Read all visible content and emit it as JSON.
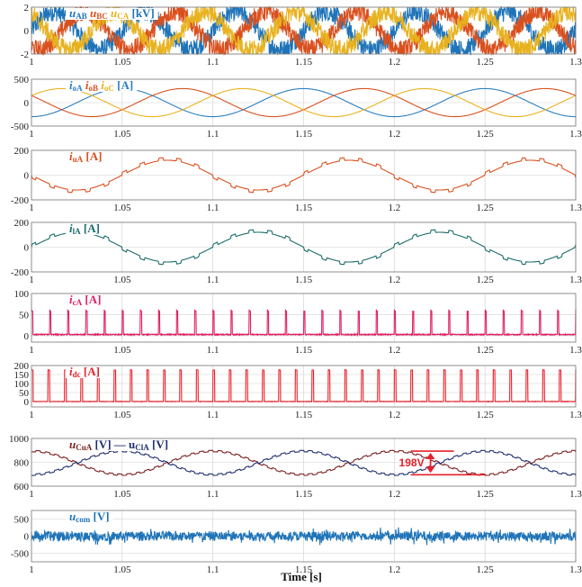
{
  "chart_data": [
    {
      "id": "p1",
      "type": "line",
      "xlim": [
        1,
        1.3
      ],
      "ylim": [
        -2,
        2
      ],
      "yticks": [
        -2,
        0,
        2
      ],
      "xticks": [
        1,
        1.05,
        1.1,
        1.15,
        1.2,
        1.25,
        1.3
      ],
      "label": [
        {
          "t": "u",
          "it": true,
          "c": "#1f74b8"
        },
        {
          "t": "AB",
          "sub": true,
          "c": "#1f74b8"
        },
        {
          "t": " u",
          "it": true,
          "c": "#d9501e"
        },
        {
          "t": "BC",
          "sub": true,
          "c": "#d9501e"
        },
        {
          "t": " u",
          "it": true,
          "c": "#e8b21f"
        },
        {
          "t": "CA",
          "sub": true,
          "c": "#e8b21f"
        },
        {
          "t": " [kV]",
          "c": "#1f74b8"
        }
      ],
      "series": [
        {
          "name": "uAB",
          "color": "#1f74b8",
          "amplitude": 1.6,
          "phase_deg": 0,
          "frequency_hz": 20,
          "style": "pwm"
        },
        {
          "name": "uBC",
          "color": "#d9501e",
          "amplitude": 1.6,
          "phase_deg": -120,
          "frequency_hz": 20,
          "style": "pwm"
        },
        {
          "name": "uCA",
          "color": "#e8b21f",
          "amplitude": 1.6,
          "phase_deg": 120,
          "frequency_hz": 20,
          "style": "pwm"
        }
      ]
    },
    {
      "id": "p2",
      "type": "line",
      "xlim": [
        1,
        1.3
      ],
      "ylim": [
        -500,
        500
      ],
      "yticks": [
        -500,
        0,
        500
      ],
      "xticks": [
        1,
        1.05,
        1.1,
        1.15,
        1.2,
        1.25,
        1.3
      ],
      "label": [
        {
          "t": "i",
          "it": true,
          "c": "#2b7fc0"
        },
        {
          "t": "oA",
          "sub": true,
          "c": "#2b7fc0"
        },
        {
          "t": " i",
          "it": true,
          "c": "#d9501e"
        },
        {
          "t": "oB",
          "sub": true,
          "c": "#d9501e"
        },
        {
          "t": " i",
          "it": true,
          "c": "#e8b21f"
        },
        {
          "t": "oC",
          "sub": true,
          "c": "#e8b21f"
        },
        {
          "t": " [A]",
          "c": "#2b7fc0"
        }
      ],
      "series": [
        {
          "name": "ioA",
          "color": "#2b7fc0",
          "amplitude": 300,
          "phase_deg": -90,
          "frequency_hz": 10,
          "style": "sine"
        },
        {
          "name": "ioB",
          "color": "#d9501e",
          "amplitude": 300,
          "phase_deg": 150,
          "frequency_hz": 10,
          "style": "sine"
        },
        {
          "name": "ioC",
          "color": "#e8b21f",
          "amplitude": 300,
          "phase_deg": 30,
          "frequency_hz": 10,
          "style": "sine"
        }
      ]
    },
    {
      "id": "p3",
      "type": "line",
      "xlim": [
        1,
        1.3
      ],
      "ylim": [
        -200,
        200
      ],
      "yticks": [
        -200,
        0,
        200
      ],
      "xticks": [
        1,
        1.05,
        1.1,
        1.15,
        1.2,
        1.25,
        1.3
      ],
      "label": [
        {
          "t": "i",
          "it": true,
          "c": "#d9501e"
        },
        {
          "t": "uA",
          "sub": true,
          "c": "#d9501e"
        },
        {
          "t": " [A]",
          "c": "#d9501e"
        }
      ],
      "series": [
        {
          "name": "iuA",
          "color": "#d9501e",
          "amplitude": 120,
          "offset": 0,
          "phase_deg": 180,
          "frequency_hz": 10,
          "style": "step-sine"
        }
      ]
    },
    {
      "id": "p4",
      "type": "line",
      "xlim": [
        1,
        1.3
      ],
      "ylim": [
        -200,
        200
      ],
      "yticks": [
        -200,
        0,
        200
      ],
      "xticks": [
        1,
        1.05,
        1.1,
        1.15,
        1.2,
        1.25,
        1.3
      ],
      "label": [
        {
          "t": "i",
          "it": true,
          "c": "#1a6b6b"
        },
        {
          "t": "lA",
          "sub": true,
          "c": "#1a6b6b"
        },
        {
          "t": " [A]",
          "c": "#1a6b6b"
        }
      ],
      "series": [
        {
          "name": "ilA",
          "color": "#1a6b6b",
          "amplitude": 120,
          "offset": 0,
          "phase_deg": 0,
          "frequency_hz": 10,
          "style": "step-sine"
        }
      ]
    },
    {
      "id": "p5",
      "type": "line",
      "xlim": [
        1,
        1.3
      ],
      "ylim": [
        -15,
        100
      ],
      "yticks": [
        0,
        50,
        100
      ],
      "xticks": [
        1,
        1.05,
        1.1,
        1.15,
        1.2,
        1.25,
        1.3
      ],
      "label": [
        {
          "t": "i",
          "it": true,
          "c": "#e0205f"
        },
        {
          "t": "cA",
          "sub": true,
          "c": "#e0205f"
        },
        {
          "t": " [A]",
          "c": "#e0205f"
        }
      ],
      "series": [
        {
          "name": "icA",
          "color": "#e0205f",
          "high": 58,
          "low": 3,
          "pulse_period_s": 0.01,
          "duty": 0.28,
          "style": "pulses"
        }
      ]
    },
    {
      "id": "p6",
      "type": "line",
      "xlim": [
        1,
        1.3
      ],
      "ylim": [
        -30,
        200
      ],
      "yticks": [
        0,
        50,
        100,
        150,
        200
      ],
      "xticks": [
        1,
        1.05,
        1.1,
        1.15,
        1.2,
        1.25,
        1.3
      ],
      "label": [
        {
          "t": "i",
          "it": true,
          "c": "#e8202a"
        },
        {
          "t": "dc",
          "sub": true,
          "c": "#e8202a"
        },
        {
          "t": " [A]",
          "c": "#e8202a"
        }
      ],
      "series": [
        {
          "name": "idc",
          "color": "#e8202a",
          "high": 175,
          "low": 0,
          "pulse_period_s": 0.00909,
          "duty": 0.42,
          "style": "pulses"
        }
      ]
    },
    {
      "id": "p7",
      "type": "line",
      "xlim": [
        1,
        1.3
      ],
      "ylim": [
        600,
        1000
      ],
      "yticks": [
        600,
        800,
        1000
      ],
      "xticks": [
        1,
        1.05,
        1.1,
        1.15,
        1.2,
        1.25,
        1.3
      ],
      "label": [
        {
          "t": "u",
          "it": true,
          "c": "#7a1f1f"
        },
        {
          "t": "CuA",
          "sub": true,
          "c": "#7a1f1f"
        },
        {
          "t": " [V]  — u",
          "c": "#1f2f6e"
        },
        {
          "t": "ClA",
          "sub": true,
          "c": "#1f2f6e"
        },
        {
          "t": " [V]",
          "c": "#1f2f6e"
        }
      ],
      "series": [
        {
          "name": "uCuA",
          "color": "#7a1f1f",
          "center": 795,
          "amplitude": 99,
          "phase_deg": 90,
          "frequency_hz": 10,
          "style": "cap-voltage"
        },
        {
          "name": "uClA",
          "color": "#1f2f6e",
          "center": 795,
          "amplitude": 99,
          "phase_deg": -90,
          "frequency_hz": 10,
          "style": "cap-voltage"
        }
      ],
      "annotation": {
        "text": "198V",
        "x_start": 1.215,
        "x_end": 1.25,
        "y_top": 894,
        "y_bottom": 696,
        "color": "#e8202a"
      }
    },
    {
      "id": "p8",
      "type": "line",
      "xlim": [
        1,
        1.3
      ],
      "ylim": [
        -750,
        750
      ],
      "yticks": [
        -500,
        0,
        500
      ],
      "xticks": [
        1,
        1.05,
        1.1,
        1.15,
        1.2,
        1.25,
        1.3
      ],
      "label": [
        {
          "t": "u",
          "it": true,
          "c": "#1f74b8"
        },
        {
          "t": "com",
          "sub": true,
          "c": "#1f74b8"
        },
        {
          "t": " [V]",
          "c": "#1f74b8"
        }
      ],
      "series": [
        {
          "name": "ucom",
          "color": "#1f74b8",
          "amplitude": 280,
          "style": "noise"
        }
      ]
    }
  ],
  "xlabel": "Time [s]"
}
